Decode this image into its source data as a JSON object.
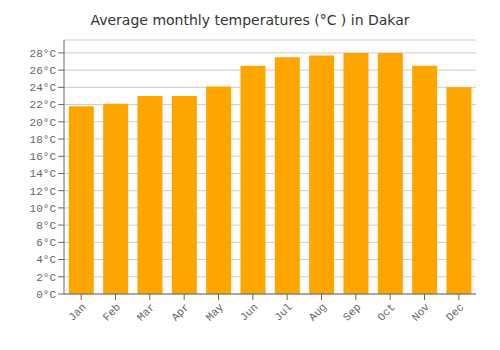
{
  "chart_data": {
    "type": "bar",
    "title": "Average monthly temperatures (°C ) in Dakar",
    "categories": [
      "Jan",
      "Feb",
      "Mar",
      "Apr",
      "May",
      "Jun",
      "Jul",
      "Aug",
      "Sep",
      "Oct",
      "Nov",
      "Dec"
    ],
    "values": [
      21.8,
      22.1,
      23.0,
      23.0,
      24.1,
      26.5,
      27.5,
      27.7,
      28.0,
      28.0,
      26.5,
      24.0
    ],
    "color": "#FFA500",
    "ylim": [
      0,
      29.5
    ],
    "yticks": [
      {
        "value": 0,
        "label": "0°C"
      },
      {
        "value": 2,
        "label": "2°C"
      },
      {
        "value": 4,
        "label": "4°C"
      },
      {
        "value": 6,
        "label": "6°C"
      },
      {
        "value": 8,
        "label": "8°C"
      },
      {
        "value": 10,
        "label": "10°C"
      },
      {
        "value": 12,
        "label": "12°C"
      },
      {
        "value": 14,
        "label": "14°C"
      },
      {
        "value": 16,
        "label": "16°C"
      },
      {
        "value": 18,
        "label": "18°C"
      },
      {
        "value": 20,
        "label": "20°C"
      },
      {
        "value": 22,
        "label": "22°C"
      },
      {
        "value": 24,
        "label": "24°C"
      },
      {
        "value": 26,
        "label": "26°C"
      },
      {
        "value": 28,
        "label": "28°C"
      }
    ],
    "grid": true
  }
}
